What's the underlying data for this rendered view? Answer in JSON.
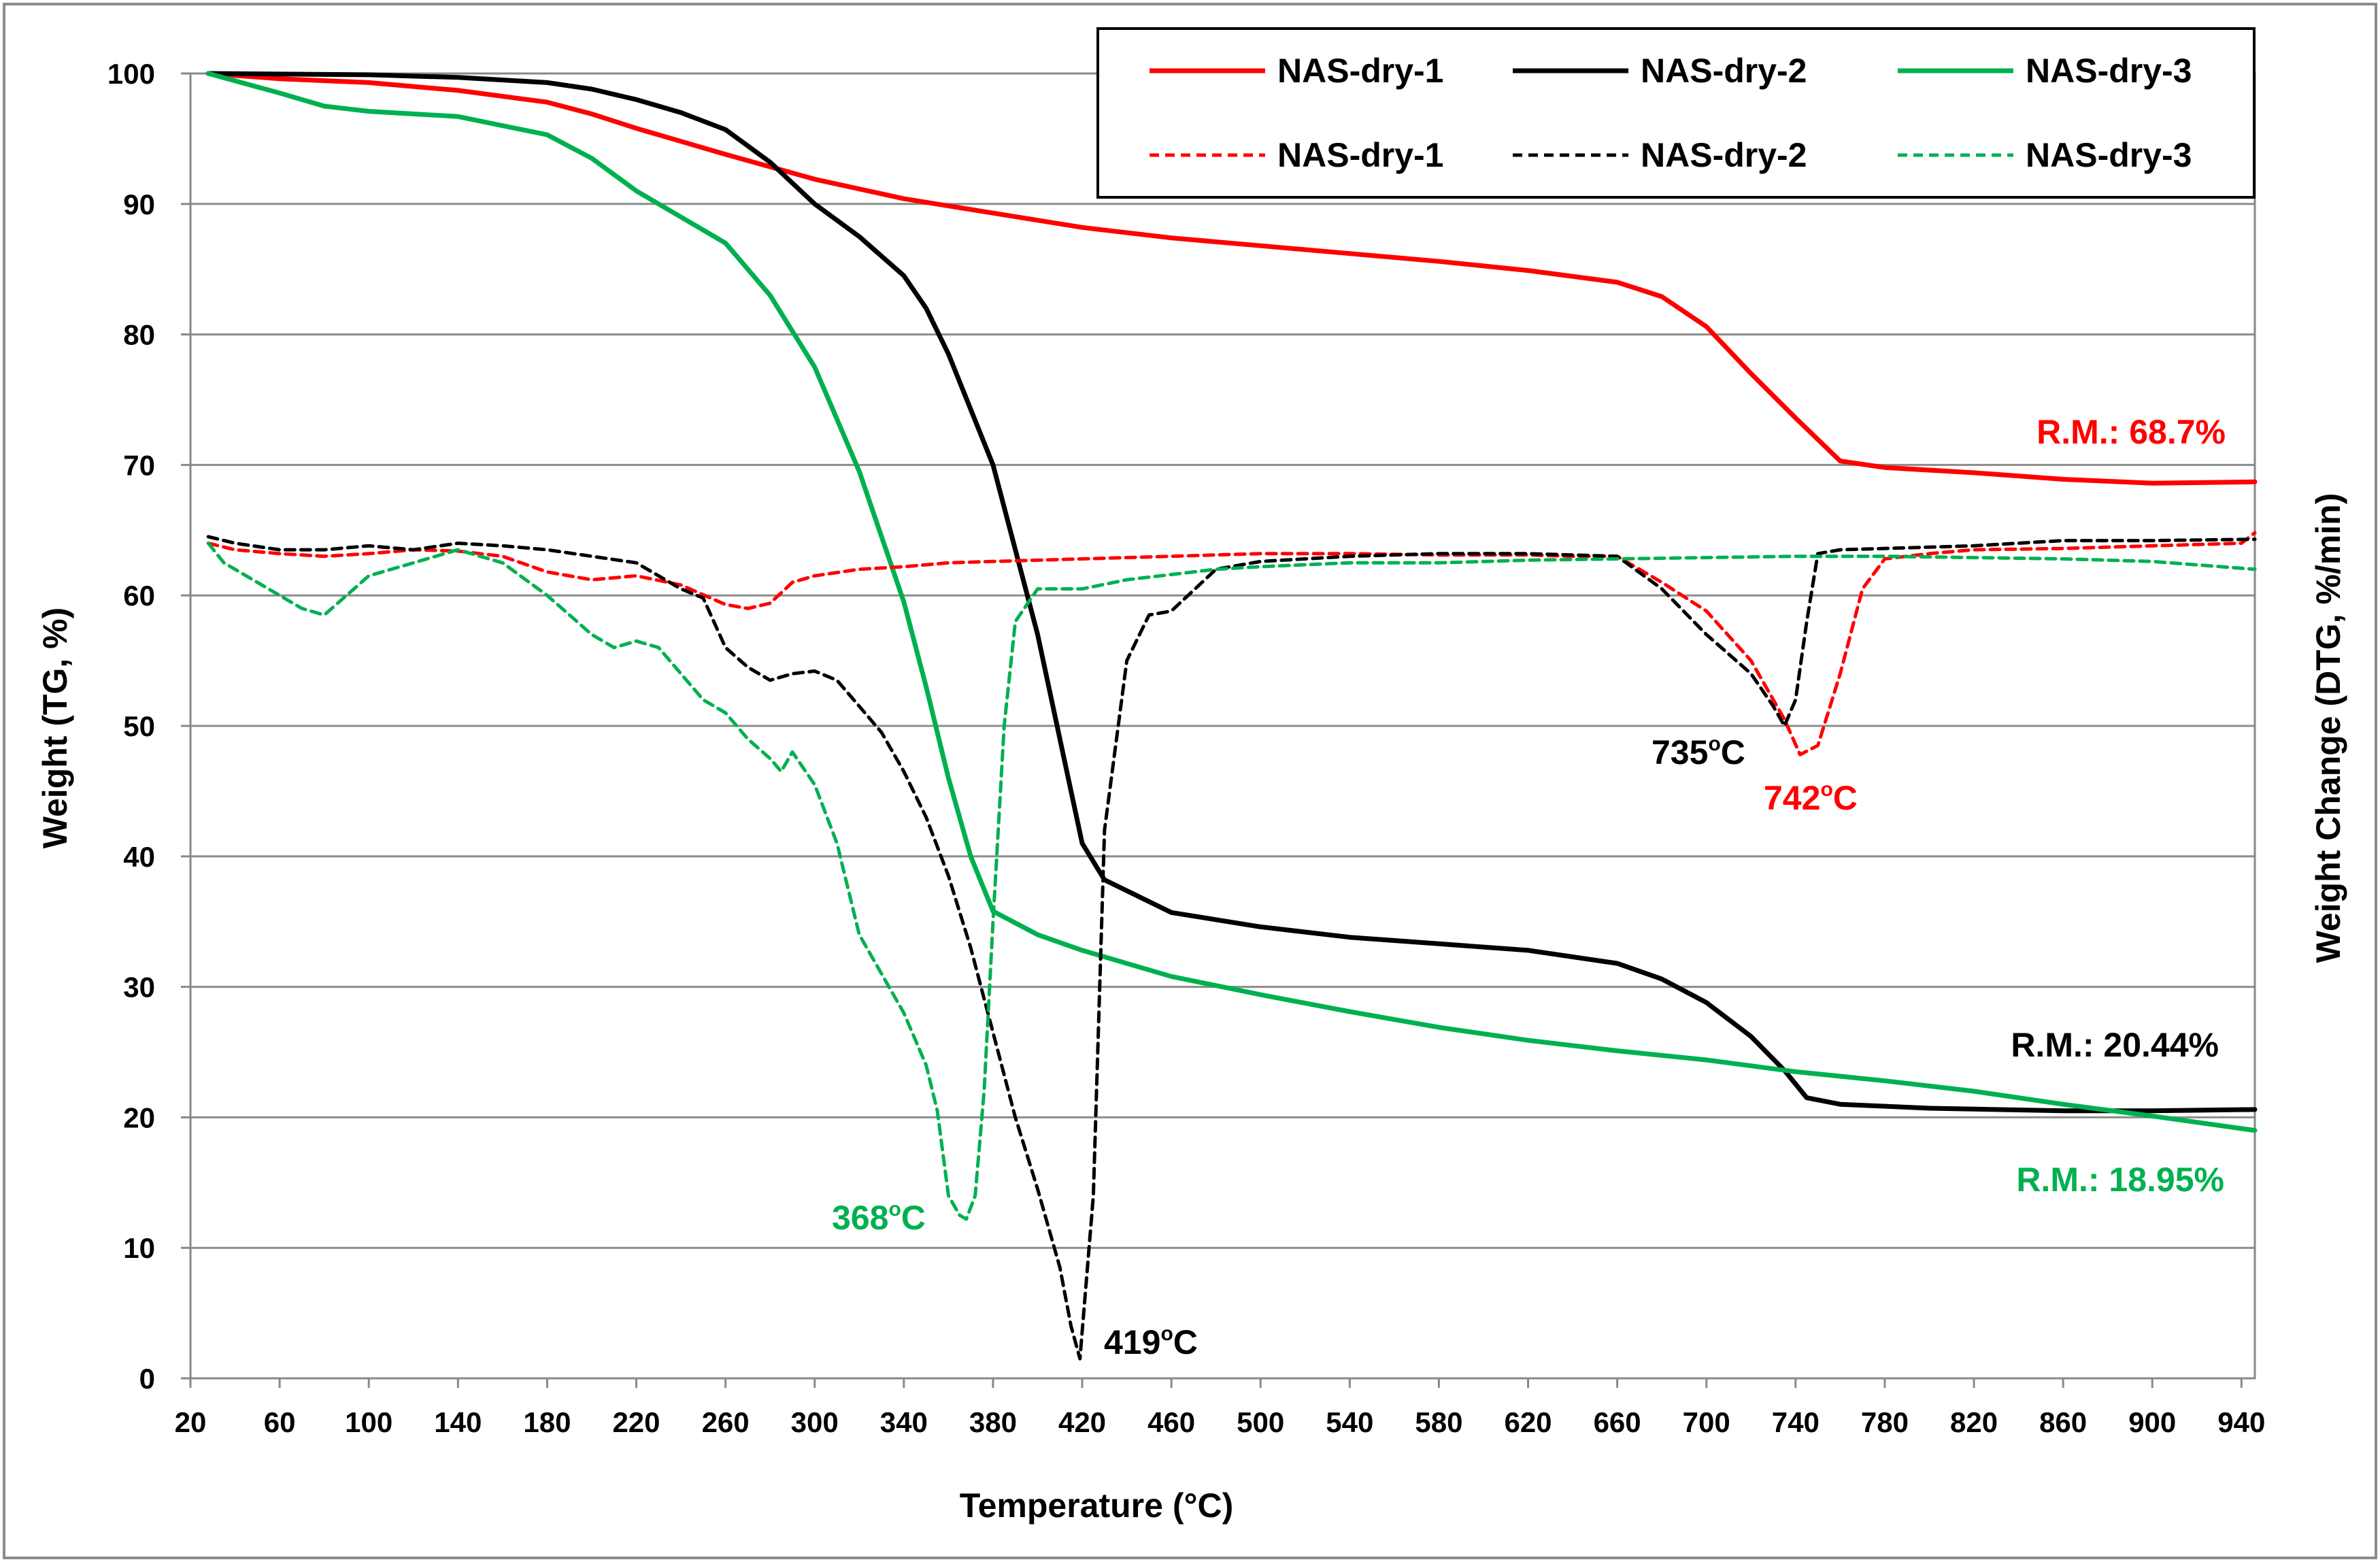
{
  "chart_data": {
    "type": "line",
    "title": "",
    "xlabel": "Temperature (°C)",
    "ylabel": "Weight (TG, %)",
    "y2label": "Weight Change (DTG, %/min)",
    "xlim": [
      20,
      946
    ],
    "ylim": [
      0,
      100
    ],
    "x_ticks": [
      "20",
      "60",
      "100",
      "140",
      "180",
      "220",
      "260",
      "300",
      "340",
      "380",
      "420",
      "460",
      "500",
      "540",
      "580",
      "620",
      "660",
      "700",
      "740",
      "780",
      "820",
      "860",
      "900",
      "940"
    ],
    "y_ticks": [
      "0",
      "10",
      "20",
      "30",
      "40",
      "50",
      "60",
      "70",
      "80",
      "90",
      "100"
    ],
    "grid": true,
    "legend_position": "top-right",
    "colors": {
      "red": "#ff0000",
      "black": "#000000",
      "green": "#00b050"
    },
    "series": [
      {
        "name": "NAS-dry-1",
        "kind": "TG",
        "style": "solid",
        "color": "#ff0000",
        "x": [
          28,
          60,
          100,
          140,
          180,
          200,
          220,
          260,
          300,
          340,
          380,
          420,
          460,
          500,
          540,
          580,
          620,
          660,
          680,
          700,
          720,
          740,
          760,
          780,
          820,
          860,
          900,
          946
        ],
        "y": [
          100,
          99.6,
          99.3,
          98.7,
          97.8,
          96.9,
          95.8,
          93.8,
          91.9,
          90.4,
          89.3,
          88.2,
          87.4,
          86.8,
          86.2,
          85.6,
          84.9,
          84,
          82.9,
          80.6,
          77,
          73.6,
          70.3,
          69.8,
          69.4,
          68.9,
          68.6,
          68.7
        ]
      },
      {
        "name": "NAS-dry-2",
        "kind": "TG",
        "style": "solid",
        "color": "#000000",
        "x": [
          28,
          100,
          140,
          180,
          200,
          220,
          240,
          260,
          280,
          300,
          320,
          340,
          350,
          360,
          380,
          400,
          410,
          420,
          430,
          460,
          500,
          540,
          580,
          620,
          660,
          680,
          700,
          720,
          735,
          745,
          760,
          800,
          860,
          900,
          946
        ],
        "y": [
          100,
          99.9,
          99.7,
          99.3,
          98.8,
          98,
          97,
          95.7,
          93.2,
          90,
          87.5,
          84.5,
          82,
          78.5,
          70,
          57,
          49,
          41,
          38.2,
          35.7,
          34.6,
          33.8,
          33.3,
          32.8,
          31.8,
          30.6,
          28.8,
          26.2,
          23.6,
          21.5,
          21,
          20.7,
          20.5,
          20.5,
          20.6
        ]
      },
      {
        "name": "NAS-dry-3",
        "kind": "TG",
        "style": "solid",
        "color": "#00b050",
        "x": [
          28,
          60,
          80,
          100,
          140,
          180,
          200,
          220,
          260,
          280,
          300,
          320,
          340,
          350,
          360,
          370,
          380,
          400,
          420,
          460,
          500,
          540,
          580,
          620,
          660,
          700,
          740,
          780,
          820,
          860,
          900,
          946
        ],
        "y": [
          100,
          98.5,
          97.5,
          97.1,
          96.7,
          95.3,
          93.5,
          91,
          87,
          83,
          77.5,
          69.5,
          59.5,
          53,
          46,
          40,
          35.8,
          34,
          32.8,
          30.8,
          29.4,
          28.1,
          26.9,
          25.9,
          25.1,
          24.4,
          23.5,
          22.8,
          22,
          21,
          20.1,
          19
        ]
      },
      {
        "name": "NAS-dry-1",
        "kind": "DTG",
        "style": "dashed",
        "color": "#ff0000",
        "x": [
          28,
          40,
          60,
          80,
          100,
          120,
          140,
          160,
          180,
          200,
          220,
          240,
          260,
          270,
          280,
          290,
          300,
          320,
          340,
          360,
          380,
          400,
          420,
          440,
          460,
          480,
          500,
          540,
          580,
          620,
          640,
          660,
          680,
          700,
          720,
          735,
          742,
          750,
          760,
          770,
          780,
          800,
          820,
          860,
          900,
          940,
          946
        ],
        "y": [
          64,
          63.5,
          63.2,
          63,
          63.2,
          63.5,
          63.4,
          63,
          61.8,
          61.2,
          61.5,
          60.8,
          59.3,
          59,
          59.4,
          61,
          61.5,
          62,
          62.2,
          62.5,
          62.6,
          62.7,
          62.8,
          62.9,
          63,
          63.1,
          63.2,
          63.2,
          63.1,
          63.1,
          63,
          63,
          61,
          58.8,
          55,
          50.5,
          47.8,
          48.5,
          54,
          60.5,
          62.8,
          63.2,
          63.5,
          63.6,
          63.8,
          64,
          64.8
        ]
      },
      {
        "name": "NAS-dry-2",
        "kind": "DTG",
        "style": "dashed",
        "color": "#000000",
        "x": [
          28,
          40,
          60,
          80,
          100,
          120,
          140,
          160,
          180,
          200,
          220,
          240,
          250,
          260,
          270,
          280,
          290,
          300,
          310,
          320,
          330,
          340,
          350,
          360,
          370,
          380,
          390,
          400,
          410,
          415,
          419,
          425,
          430,
          440,
          450,
          460,
          480,
          500,
          540,
          580,
          620,
          660,
          680,
          700,
          720,
          730,
          735,
          740,
          745,
          750,
          760,
          780,
          820,
          860,
          900,
          946
        ],
        "y": [
          64.5,
          64,
          63.5,
          63.5,
          63.8,
          63.5,
          64,
          63.8,
          63.5,
          63,
          62.5,
          60.5,
          59.8,
          56,
          54.5,
          53.5,
          54,
          54.2,
          53.5,
          51.5,
          49.5,
          46.5,
          43,
          38.5,
          33,
          26.5,
          20,
          14.5,
          8.5,
          4,
          1.5,
          14,
          42,
          55,
          58.5,
          58.8,
          62,
          62.6,
          63,
          63.2,
          63.2,
          63,
          60.5,
          57,
          54,
          51.5,
          50,
          52,
          58,
          63.2,
          63.5,
          63.6,
          63.8,
          64.2,
          64.2,
          64.3
        ]
      },
      {
        "name": "NAS-dry-3",
        "kind": "DTG",
        "style": "dashed",
        "color": "#00b050",
        "x": [
          28,
          35,
          40,
          50,
          60,
          70,
          80,
          90,
          100,
          120,
          140,
          160,
          180,
          200,
          210,
          220,
          230,
          240,
          250,
          260,
          270,
          280,
          285,
          290,
          300,
          310,
          320,
          330,
          340,
          350,
          355,
          360,
          365,
          368,
          372,
          376,
          380,
          385,
          390,
          400,
          420,
          440,
          460,
          480,
          500,
          540,
          580,
          620,
          660,
          700,
          740,
          780,
          820,
          860,
          900,
          946
        ],
        "y": [
          64,
          62.5,
          62,
          61,
          60,
          59,
          58.5,
          60,
          61.5,
          62.5,
          63.5,
          62.5,
          60,
          57,
          56,
          56.5,
          56,
          54,
          52,
          51,
          49,
          47.5,
          46.5,
          48,
          45.5,
          41,
          34,
          31,
          28,
          24,
          20.5,
          14,
          12.5,
          12.2,
          14,
          22,
          35,
          50,
          58,
          60.5,
          60.5,
          61.2,
          61.6,
          62,
          62.2,
          62.5,
          62.5,
          62.7,
          62.8,
          62.9,
          63,
          63,
          62.9,
          62.8,
          62.6,
          62
        ]
      }
    ],
    "legend": {
      "row1": [
        "NAS-dry-1",
        "NAS-dry-2",
        "NAS-dry-3"
      ],
      "row2": [
        "NAS-dry-1",
        "NAS-dry-2",
        "NAS-dry-3"
      ]
    },
    "annotations": [
      {
        "text": "R.M.: 68.7%",
        "color": "#ff0000"
      },
      {
        "text": "R.M.: 20.44%",
        "color": "#000000"
      },
      {
        "text": "R.M.: 18.95%",
        "color": "#00b050"
      },
      {
        "text": "368",
        "sup": "o",
        "unit": "C",
        "color": "#00b050"
      },
      {
        "text": "419",
        "sup": "o",
        "unit": "C",
        "color": "#000000"
      },
      {
        "text": "735",
        "sup": "o",
        "unit": "C",
        "color": "#000000"
      },
      {
        "text": "742",
        "sup": "o",
        "unit": "C",
        "color": "#ff0000"
      }
    ]
  }
}
